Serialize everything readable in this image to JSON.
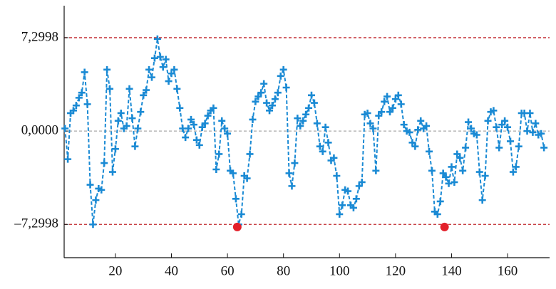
{
  "chart_data": {
    "type": "line",
    "x": [
      2,
      3,
      4,
      5,
      6,
      7,
      8,
      9,
      10,
      11,
      12,
      13,
      14,
      15,
      16,
      17,
      18,
      19,
      20,
      21,
      22,
      23,
      24,
      25,
      26,
      27,
      28,
      29,
      30,
      31,
      32,
      33,
      34,
      35,
      36,
      37,
      38,
      39,
      40,
      41,
      42,
      43,
      44,
      45,
      46,
      47,
      48,
      49,
      50,
      51,
      52,
      53,
      54,
      55,
      56,
      57,
      58,
      59,
      60,
      61,
      62,
      63,
      64,
      65,
      66,
      67,
      68,
      69,
      70,
      71,
      72,
      73,
      74,
      75,
      76,
      77,
      78,
      79,
      80,
      81,
      82,
      83,
      84,
      85,
      86,
      87,
      88,
      89,
      90,
      91,
      92,
      93,
      94,
      95,
      96,
      97,
      98,
      99,
      100,
      101,
      102,
      103,
      104,
      105,
      106,
      107,
      108,
      109,
      110,
      111,
      112,
      113,
      114,
      115,
      116,
      117,
      118,
      119,
      120,
      121,
      122,
      123,
      124,
      125,
      126,
      127,
      128,
      129,
      130,
      131,
      132,
      133,
      134,
      135,
      136,
      137,
      138,
      139,
      140,
      141,
      142,
      143,
      144,
      145,
      146,
      147,
      148,
      149,
      150,
      151,
      152,
      153,
      154,
      155,
      156,
      157,
      158,
      159,
      160,
      161,
      162,
      163,
      164,
      165,
      166,
      167,
      168,
      169,
      170,
      171,
      172,
      173
    ],
    "series": [
      {
        "color": "#1a8ad4",
        "values": [
          0.2,
          -2.2,
          1.4,
          1.6,
          2.0,
          2.6,
          3.0,
          4.6,
          2.1,
          -4.2,
          -7.3,
          -5.4,
          -4.5,
          -4.6,
          -2.5,
          4.8,
          3.3,
          -3.2,
          -1.4,
          0.8,
          1.4,
          0.2,
          0.4,
          3.3,
          1.0,
          -1.2,
          0.2,
          1.5,
          2.8,
          3.2,
          4.8,
          4.2,
          5.7,
          7.2,
          5.8,
          5.0,
          5.6,
          3.9,
          4.5,
          4.8,
          3.3,
          1.8,
          0.2,
          -0.5,
          0.2,
          0.9,
          0.5,
          -0.7,
          -1.1,
          0.3,
          0.6,
          1.2,
          1.6,
          1.8,
          -3.0,
          -1.8,
          0.8,
          0.2,
          -0.2,
          -3.1,
          -3.3,
          -5.3,
          -7.3,
          -6.5,
          -3.5,
          -3.7,
          -1.8,
          0.9,
          2.3,
          2.7,
          3.0,
          3.7,
          2.2,
          1.6,
          2.0,
          2.5,
          3.0,
          4.3,
          4.8,
          3.4,
          -3.3,
          -4.3,
          -2.5,
          1.0,
          0.4,
          0.8,
          1.3,
          1.8,
          2.8,
          2.2,
          0.6,
          -1.2,
          -1.6,
          0.3,
          -0.9,
          -2.3,
          -2.1,
          -3.5,
          -6.5,
          -5.8,
          -4.6,
          -4.7,
          -5.8,
          -6.0,
          -5.3,
          -4.3,
          -4.0,
          1.3,
          1.4,
          0.6,
          0.2,
          -3.1,
          1.2,
          1.5,
          2.3,
          2.7,
          1.5,
          1.8,
          2.5,
          2.8,
          2.1,
          0.5,
          0.0,
          -0.1,
          -0.9,
          -1.2,
          0.1,
          0.8,
          0.2,
          0.4,
          -1.6,
          -3.1,
          -6.3,
          -6.5,
          -5.5,
          -3.3,
          -3.6,
          -4.1,
          -2.8,
          -4.0,
          -1.8,
          -2.1,
          -3.1,
          -1.3,
          0.7,
          0.2,
          -0.2,
          -0.3,
          -3.2,
          -5.4,
          -3.5,
          0.8,
          1.5,
          1.6,
          0.3,
          -1.3,
          0.5,
          0.8,
          0.3,
          -0.8,
          -3.2,
          -2.8,
          -1.2,
          1.4,
          1.4,
          0.0,
          1.4,
          -0.1,
          0.6,
          -0.3,
          -0.2,
          -1.3
        ]
      }
    ],
    "points": {
      "color": "#e3202a",
      "x": [
        63.5,
        137.5
      ],
      "y": [
        -7.5,
        -7.5
      ]
    },
    "hlines": [
      {
        "value": 7.2998,
        "color": "#c0272d"
      },
      {
        "value": 0,
        "color": "#aaaaaa"
      },
      {
        "value": -7.2998,
        "color": "#c0272d"
      }
    ],
    "xlim": [
      1.7,
      175
    ],
    "ylim": [
      -9.9,
      9.8
    ],
    "xticks": [
      20,
      40,
      60,
      80,
      100,
      120,
      140,
      160
    ],
    "yticks": [
      {
        "value": 7.2998,
        "label": "7,2998"
      },
      {
        "value": 0,
        "label": "0,0000"
      },
      {
        "value": -7.2998,
        "label": "–7,2998"
      }
    ]
  }
}
